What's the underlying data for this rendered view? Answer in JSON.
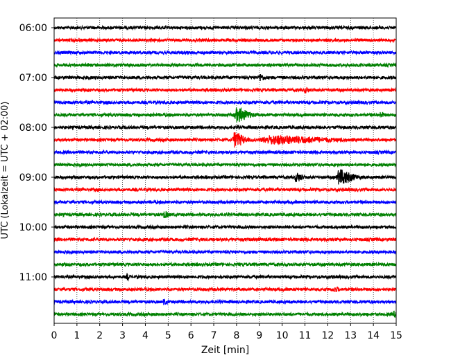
{
  "chart_data": {
    "type": "line",
    "title": "",
    "xlabel": "Zeit  [min]",
    "ylabel": "UTC (Lokalzeit = UTC + 02:00)",
    "xlim": [
      0,
      15
    ],
    "x_ticks": [
      0,
      1,
      2,
      3,
      4,
      5,
      6,
      7,
      8,
      9,
      10,
      11,
      12,
      13,
      14,
      15
    ],
    "y_tick_labels": [
      "06:00",
      "07:00",
      "08:00",
      "09:00",
      "10:00",
      "11:00"
    ],
    "grid": "vertical dotted at each minute",
    "trace_interval_minutes": 15,
    "trace_start": "06:00",
    "trace_color_cycle": [
      "#000000",
      "#ff0000",
      "#0000ff",
      "#008000"
    ],
    "traces": [
      {
        "start": "06:00",
        "color": "#000000",
        "events": []
      },
      {
        "start": "06:15",
        "color": "#ff0000",
        "events": []
      },
      {
        "start": "06:30",
        "color": "#0000ff",
        "events": []
      },
      {
        "start": "06:45",
        "color": "#008000",
        "events": []
      },
      {
        "start": "07:00",
        "color": "#000000",
        "events": [
          {
            "t": 9.0,
            "amp": 0.45,
            "dur": 0.2
          }
        ]
      },
      {
        "start": "07:15",
        "color": "#ff0000",
        "events": [
          {
            "t": 11.0,
            "amp": 0.35,
            "dur": 0.15
          }
        ]
      },
      {
        "start": "07:30",
        "color": "#0000ff",
        "events": []
      },
      {
        "start": "07:45",
        "color": "#008000",
        "events": [
          {
            "t": 8.0,
            "amp": 1.0,
            "dur": 0.5
          },
          {
            "t": 14.3,
            "amp": 0.3,
            "dur": 0.15
          }
        ]
      },
      {
        "start": "08:00",
        "color": "#000000",
        "events": []
      },
      {
        "start": "08:15",
        "color": "#ff0000",
        "events": [
          {
            "t": 7.9,
            "amp": 1.1,
            "dur": 0.4
          },
          {
            "t": 9.5,
            "amp": 0.55,
            "dur": 2.2
          }
        ]
      },
      {
        "start": "08:30",
        "color": "#0000ff",
        "events": []
      },
      {
        "start": "08:45",
        "color": "#008000",
        "events": []
      },
      {
        "start": "09:00",
        "color": "#000000",
        "events": [
          {
            "t": 10.6,
            "amp": 0.6,
            "dur": 0.25
          },
          {
            "t": 12.5,
            "amp": 1.1,
            "dur": 0.55
          }
        ]
      },
      {
        "start": "09:15",
        "color": "#ff0000",
        "events": []
      },
      {
        "start": "09:30",
        "color": "#0000ff",
        "events": []
      },
      {
        "start": "09:45",
        "color": "#008000",
        "events": [
          {
            "t": 4.8,
            "amp": 0.45,
            "dur": 0.2
          }
        ]
      },
      {
        "start": "10:00",
        "color": "#000000",
        "events": []
      },
      {
        "start": "10:15",
        "color": "#ff0000",
        "events": []
      },
      {
        "start": "10:30",
        "color": "#0000ff",
        "events": []
      },
      {
        "start": "10:45",
        "color": "#008000",
        "events": []
      },
      {
        "start": "11:00",
        "color": "#000000",
        "events": [
          {
            "t": 3.2,
            "amp": 0.4,
            "dur": 0.1
          }
        ]
      },
      {
        "start": "11:15",
        "color": "#ff0000",
        "events": [
          {
            "t": 12.3,
            "amp": 0.3,
            "dur": 0.15
          }
        ]
      },
      {
        "start": "11:30",
        "color": "#0000ff",
        "events": [
          {
            "t": 4.8,
            "amp": 0.3,
            "dur": 0.15
          }
        ]
      },
      {
        "start": "11:45",
        "color": "#008000",
        "events": [
          {
            "t": 14.9,
            "amp": 0.35,
            "dur": 0.15
          }
        ]
      }
    ]
  }
}
